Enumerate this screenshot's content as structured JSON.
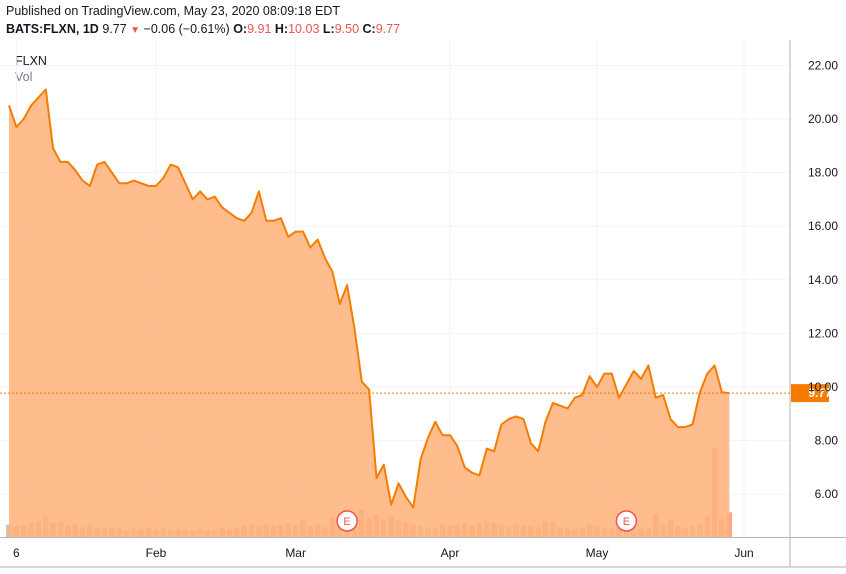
{
  "header": {
    "published": "Published on TradingView.com, May 23, 2020 08:09:18 EDT",
    "symbol": "BATS:FLXN, 1D",
    "last": "9.77",
    "arrow": "▼",
    "change": "−0.06 (−0.61%)",
    "o_label": "O:",
    "o_value": "9.91",
    "h_label": "H:",
    "h_value": "10.03",
    "l_label": "L:",
    "l_value": "9.50",
    "c_label": "C:",
    "c_value": "9.77"
  },
  "legend": {
    "symbol": "FLXN",
    "volume": "Vol"
  },
  "colors": {
    "line": "#f57c00",
    "area": "#ffb27a",
    "price_tag": "#f57c00",
    "vol_up": "#c8a97e",
    "vol_down": "#f28b6b"
  },
  "chart_data": {
    "type": "area",
    "y_min": 4.4,
    "y_max": 22.8,
    "y_ticks": [
      6,
      8,
      10,
      12,
      14,
      16,
      18,
      20,
      22
    ],
    "y_tick_labels": [
      "6.00",
      "8.00",
      "10.00",
      "12.00",
      "14.00",
      "16.00",
      "18.00",
      "20.00",
      "22.00"
    ],
    "x_ticks": [
      {
        "label": "6",
        "index": 1
      },
      {
        "label": "Feb",
        "index": 20
      },
      {
        "label": "Mar",
        "index": 39
      },
      {
        "label": "Apr",
        "index": 60
      },
      {
        "label": "May",
        "index": 80
      },
      {
        "label": "Jun",
        "index": 100
      }
    ],
    "last_price": 9.77,
    "last_price_label": "9.77",
    "earnings": [
      {
        "label": "E",
        "index": 46
      },
      {
        "label": "E",
        "index": 84
      }
    ],
    "close": [
      20.5,
      19.7,
      20.0,
      20.5,
      20.8,
      21.1,
      18.9,
      18.4,
      18.4,
      18.1,
      17.7,
      17.5,
      18.3,
      18.4,
      18.0,
      17.6,
      17.6,
      17.7,
      17.6,
      17.5,
      17.5,
      17.8,
      18.3,
      18.2,
      17.6,
      17.0,
      17.3,
      17.0,
      17.1,
      16.7,
      16.5,
      16.3,
      16.2,
      16.5,
      17.3,
      16.2,
      16.2,
      16.3,
      15.6,
      15.8,
      15.8,
      15.2,
      15.5,
      14.8,
      14.3,
      13.1,
      13.8,
      12.2,
      10.2,
      9.9,
      6.6,
      7.1,
      5.6,
      6.4,
      5.9,
      5.5,
      7.3,
      8.1,
      8.7,
      8.2,
      8.2,
      7.8,
      7.0,
      6.8,
      6.7,
      7.7,
      7.6,
      8.6,
      8.8,
      8.9,
      8.8,
      7.9,
      7.6,
      8.7,
      9.4,
      9.3,
      9.2,
      9.6,
      9.7,
      10.4,
      10.0,
      10.5,
      10.5,
      9.6,
      10.1,
      10.6,
      10.3,
      10.8,
      9.6,
      9.7,
      8.8,
      8.5,
      8.5,
      8.6,
      9.8,
      10.5,
      10.8,
      9.8,
      9.77
    ],
    "volume": [
      0.9,
      0.8,
      0.9,
      1.0,
      1.1,
      1.6,
      1.0,
      1.1,
      0.8,
      0.9,
      0.7,
      0.9,
      0.7,
      0.6,
      0.7,
      0.6,
      0.5,
      0.7,
      0.6,
      0.7,
      0.6,
      0.7,
      0.6,
      0.6,
      0.5,
      0.5,
      0.6,
      0.5,
      0.5,
      0.7,
      0.6,
      0.7,
      0.8,
      0.9,
      0.8,
      0.9,
      0.8,
      0.9,
      1.0,
      0.9,
      1.2,
      0.8,
      0.9,
      0.7,
      1.4,
      0.8,
      0.7,
      1.1,
      2.0,
      1.4,
      1.6,
      1.3,
      1.5,
      1.2,
      1.1,
      0.9,
      0.8,
      0.7,
      0.6,
      0.9,
      0.8,
      0.9,
      1.0,
      0.8,
      1.0,
      1.1,
      1.0,
      0.9,
      0.8,
      0.9,
      0.8,
      0.8,
      0.7,
      1.2,
      1.1,
      0.7,
      0.6,
      0.6,
      0.7,
      1.0,
      0.8,
      0.7,
      0.6,
      0.7,
      0.9,
      0.7,
      0.6,
      0.6,
      1.7,
      0.9,
      1.2,
      0.8,
      0.7,
      0.8,
      1.0,
      1.5,
      6.5,
      1.3,
      1.8
    ],
    "volume_down": [
      0,
      1,
      0,
      0,
      0,
      0,
      1,
      0,
      1,
      1,
      1,
      0,
      0,
      0,
      1,
      1,
      0,
      0,
      1,
      1,
      0,
      0,
      0,
      1,
      1,
      1,
      0,
      1,
      0,
      1,
      1,
      1,
      1,
      0,
      0,
      1,
      0,
      1,
      1,
      0,
      1,
      1,
      0,
      1,
      1,
      0,
      0,
      1,
      1,
      1,
      1,
      0,
      1,
      0,
      1,
      1,
      0,
      0,
      0,
      1,
      0,
      1,
      1,
      1,
      1,
      0,
      1,
      0,
      0,
      0,
      1,
      1,
      1,
      0,
      0,
      1,
      1,
      0,
      0,
      0,
      1,
      0,
      0,
      1,
      0,
      0,
      1,
      0,
      1,
      0,
      1,
      1,
      0,
      0,
      0,
      0,
      1,
      1,
      1
    ],
    "volume_max": 8.0
  }
}
